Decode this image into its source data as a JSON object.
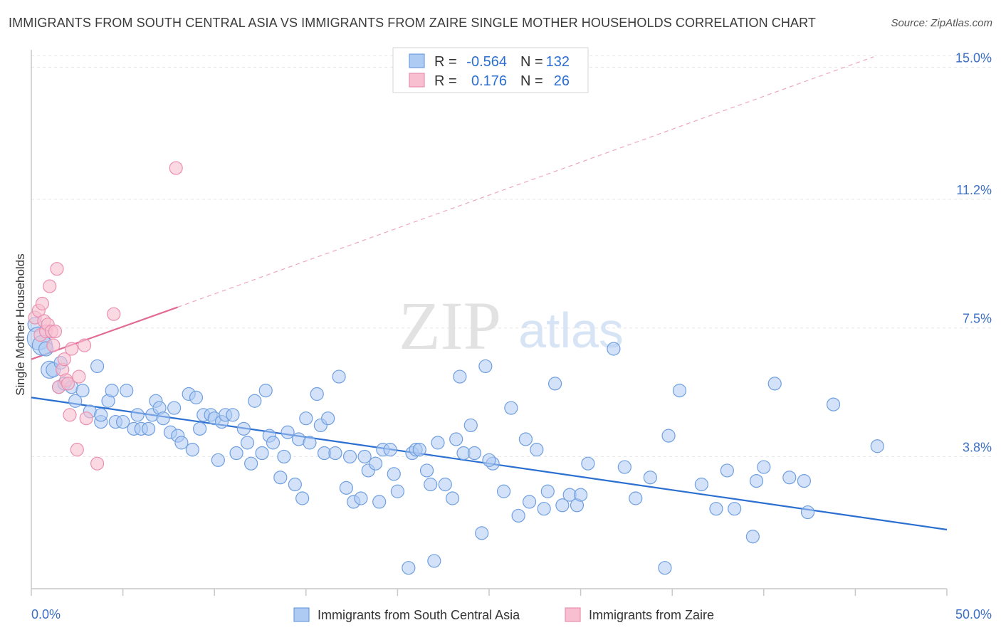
{
  "title": "IMMIGRANTS FROM SOUTH CENTRAL ASIA VS IMMIGRANTS FROM ZAIRE SINGLE MOTHER HOUSEHOLDS CORRELATION CHART",
  "source": "Source: ZipAtlas.com",
  "watermark": {
    "zip": "ZIP",
    "atlas": "atlas"
  },
  "colors": {
    "blue_fill": "#aecbf3",
    "blue_stroke": "#6f9fe0",
    "blue_line": "#2b6fd1",
    "pink_fill": "#f7bfd0",
    "pink_stroke": "#ea8fb0",
    "pink_line": "#e26a95",
    "tick_label": "#3a6fc4",
    "grid": "#e6e6e6"
  },
  "legend": {
    "rows": [
      {
        "r_label": "R =",
        "r_value": "-0.564",
        "n_label": "N =",
        "n_value": "132"
      },
      {
        "r_label": "R =",
        "r_value": "0.176",
        "n_label": "N =",
        "n_value": "26"
      }
    ]
  },
  "chart_data": {
    "type": "scatter",
    "title": "IMMIGRANTS FROM SOUTH CENTRAL ASIA VS IMMIGRANTS FROM ZAIRE SINGLE MOTHER HOUSEHOLDS CORRELATION CHART",
    "xlabel": "",
    "ylabel": "Single Mother Households",
    "xlim": [
      0,
      50
    ],
    "ylim": [
      0,
      15.5
    ],
    "x_tick_labels": [
      {
        "value": 0,
        "label": "0.0%"
      },
      {
        "value": 50,
        "label": "50.0%"
      }
    ],
    "y_ticks": [
      {
        "value": 3.8,
        "label": "3.8%"
      },
      {
        "value": 7.5,
        "label": "7.5%"
      },
      {
        "value": 11.2,
        "label": "11.2%"
      },
      {
        "value": 15.0,
        "label": "15.0%"
      }
    ],
    "grid": true,
    "legend_position": "top-center",
    "series": [
      {
        "name": "Immigrants from South Central Asia",
        "color": "#aecbf3",
        "trend": {
          "x": [
            0,
            50
          ],
          "y": [
            5.5,
            1.7
          ]
        },
        "points": [
          [
            0.2,
            7.6,
            10
          ],
          [
            0.4,
            7.2,
            16
          ],
          [
            0.6,
            7.0,
            14
          ],
          [
            0.8,
            6.9,
            10
          ],
          [
            1.0,
            6.3,
            12
          ],
          [
            1.2,
            6.3,
            10
          ],
          [
            1.5,
            5.8,
            9
          ],
          [
            1.6,
            6.5,
            9
          ],
          [
            1.8,
            5.9,
            9
          ],
          [
            2.2,
            5.8,
            9
          ],
          [
            2.4,
            5.4,
            9
          ],
          [
            2.8,
            5.7,
            9
          ],
          [
            3.2,
            5.1,
            9
          ],
          [
            3.6,
            6.4,
            9
          ],
          [
            3.8,
            4.8,
            9
          ],
          [
            4.2,
            5.4,
            9
          ],
          [
            4.4,
            5.7,
            9
          ],
          [
            4.6,
            4.8,
            9
          ],
          [
            5.0,
            4.8,
            9
          ],
          [
            5.2,
            5.7,
            9
          ],
          [
            5.6,
            4.6,
            9
          ],
          [
            5.8,
            5.0,
            9
          ],
          [
            6.0,
            4.6,
            9
          ],
          [
            6.4,
            4.6,
            9
          ],
          [
            6.6,
            5.0,
            9
          ],
          [
            6.8,
            5.4,
            9
          ],
          [
            7.0,
            5.2,
            9
          ],
          [
            7.2,
            4.9,
            9
          ],
          [
            7.6,
            4.5,
            9
          ],
          [
            7.8,
            5.2,
            9
          ],
          [
            8.0,
            4.4,
            9
          ],
          [
            8.2,
            4.2,
            9
          ],
          [
            8.6,
            5.6,
            9
          ],
          [
            8.8,
            4.0,
            9
          ],
          [
            9.0,
            5.5,
            9
          ],
          [
            9.2,
            4.6,
            9
          ],
          [
            9.4,
            5.0,
            9
          ],
          [
            9.8,
            5.0,
            9
          ],
          [
            10.0,
            4.9,
            9
          ],
          [
            10.4,
            4.8,
            9
          ],
          [
            10.6,
            5.0,
            9
          ],
          [
            11.0,
            5.0,
            9
          ],
          [
            11.2,
            3.9,
            9
          ],
          [
            11.6,
            4.6,
            9
          ],
          [
            11.8,
            4.2,
            9
          ],
          [
            12.0,
            3.6,
            9
          ],
          [
            12.2,
            5.4,
            9
          ],
          [
            12.6,
            3.9,
            9
          ],
          [
            12.8,
            5.7,
            9
          ],
          [
            13.0,
            4.4,
            9
          ],
          [
            13.2,
            4.2,
            9
          ],
          [
            13.6,
            3.2,
            9
          ],
          [
            13.8,
            3.8,
            9
          ],
          [
            14.0,
            4.5,
            9
          ],
          [
            14.4,
            3.0,
            9
          ],
          [
            14.6,
            4.3,
            9
          ],
          [
            14.8,
            2.6,
            9
          ],
          [
            15.0,
            4.9,
            9
          ],
          [
            15.2,
            4.2,
            9
          ],
          [
            15.6,
            5.6,
            9
          ],
          [
            15.8,
            4.7,
            9
          ],
          [
            16.0,
            3.9,
            9
          ],
          [
            16.2,
            4.9,
            9
          ],
          [
            16.6,
            3.9,
            9
          ],
          [
            16.8,
            6.1,
            9
          ],
          [
            17.2,
            2.9,
            9
          ],
          [
            17.4,
            3.8,
            9
          ],
          [
            17.6,
            2.5,
            9
          ],
          [
            18.0,
            2.6,
            9
          ],
          [
            18.2,
            3.8,
            9
          ],
          [
            18.4,
            3.4,
            9
          ],
          [
            18.8,
            3.6,
            9
          ],
          [
            19.0,
            2.5,
            9
          ],
          [
            19.2,
            4.0,
            9
          ],
          [
            19.6,
            4.0,
            9
          ],
          [
            19.8,
            3.3,
            9
          ],
          [
            20.0,
            2.8,
            9
          ],
          [
            20.6,
            0.6,
            9
          ],
          [
            20.8,
            3.9,
            9
          ],
          [
            21.0,
            4.0,
            9
          ],
          [
            21.2,
            4.0,
            9
          ],
          [
            21.6,
            3.4,
            9
          ],
          [
            21.8,
            3.0,
            9
          ],
          [
            22.0,
            0.8,
            9
          ],
          [
            22.2,
            4.2,
            9
          ],
          [
            22.6,
            3.0,
            9
          ],
          [
            23.0,
            2.6,
            9
          ],
          [
            23.2,
            4.3,
            9
          ],
          [
            23.4,
            6.1,
            9
          ],
          [
            23.6,
            3.9,
            9
          ],
          [
            24.0,
            4.7,
            9
          ],
          [
            24.2,
            3.9,
            9
          ],
          [
            24.6,
            1.6,
            9
          ],
          [
            24.8,
            6.4,
            9
          ],
          [
            25.2,
            3.6,
            9
          ],
          [
            25.8,
            2.8,
            9
          ],
          [
            26.2,
            5.2,
            9
          ],
          [
            26.6,
            2.1,
            9
          ],
          [
            27.0,
            4.3,
            9
          ],
          [
            27.2,
            2.5,
            9
          ],
          [
            27.6,
            4.0,
            9
          ],
          [
            28.0,
            2.3,
            9
          ],
          [
            28.2,
            2.8,
            9
          ],
          [
            28.6,
            5.9,
            9
          ],
          [
            29.0,
            2.4,
            9
          ],
          [
            29.4,
            2.7,
            9
          ],
          [
            29.8,
            2.4,
            9
          ],
          [
            30.0,
            2.7,
            9
          ],
          [
            31.8,
            6.9,
            9
          ],
          [
            32.4,
            3.5,
            9
          ],
          [
            33.8,
            3.2,
            9
          ],
          [
            34.6,
            0.6,
            9
          ],
          [
            34.8,
            4.4,
            9
          ],
          [
            35.4,
            5.7,
            9
          ],
          [
            36.6,
            3.0,
            9
          ],
          [
            37.4,
            2.3,
            9
          ],
          [
            38.0,
            3.4,
            9
          ],
          [
            38.4,
            2.3,
            9
          ],
          [
            39.4,
            1.5,
            9
          ],
          [
            39.6,
            3.1,
            9
          ],
          [
            40.0,
            3.5,
            9
          ],
          [
            40.6,
            5.9,
            9
          ],
          [
            41.4,
            3.2,
            9
          ],
          [
            42.2,
            3.1,
            9
          ],
          [
            42.4,
            2.2,
            9
          ],
          [
            43.8,
            5.3,
            9
          ],
          [
            46.2,
            4.1,
            9
          ],
          [
            3.8,
            5.0,
            9
          ],
          [
            10.2,
            3.7,
            9
          ],
          [
            25.0,
            3.7,
            9
          ],
          [
            30.4,
            3.6,
            9
          ],
          [
            33.0,
            2.6,
            9
          ]
        ]
      },
      {
        "name": "Immigrants from Zaire",
        "color": "#f7bfd0",
        "trend": {
          "x": [
            0,
            8
          ],
          "y": [
            6.6,
            8.1
          ]
        },
        "trend_extended": {
          "x": [
            8,
            46
          ],
          "y": [
            8.1,
            15.3
          ]
        },
        "points": [
          [
            0.2,
            7.8,
            9
          ],
          [
            0.4,
            8.0,
            9
          ],
          [
            0.5,
            7.3,
            9
          ],
          [
            0.6,
            8.2,
            9
          ],
          [
            0.7,
            7.7,
            9
          ],
          [
            0.8,
            7.4,
            9
          ],
          [
            0.9,
            7.6,
            9
          ],
          [
            1.0,
            8.7,
            9
          ],
          [
            1.1,
            7.4,
            9
          ],
          [
            1.2,
            7.0,
            9
          ],
          [
            1.3,
            7.4,
            9
          ],
          [
            1.4,
            9.2,
            9
          ],
          [
            1.5,
            5.8,
            9
          ],
          [
            1.7,
            6.3,
            9
          ],
          [
            1.8,
            6.6,
            9
          ],
          [
            1.9,
            6.0,
            9
          ],
          [
            2.0,
            5.9,
            9
          ],
          [
            2.1,
            5.0,
            9
          ],
          [
            2.2,
            6.9,
            9
          ],
          [
            2.5,
            4.0,
            9
          ],
          [
            2.6,
            6.1,
            9
          ],
          [
            2.9,
            7.0,
            9
          ],
          [
            3.0,
            4.9,
            9
          ],
          [
            3.6,
            3.6,
            9
          ],
          [
            4.5,
            7.9,
            9
          ],
          [
            7.9,
            12.1,
            9
          ]
        ]
      }
    ]
  }
}
